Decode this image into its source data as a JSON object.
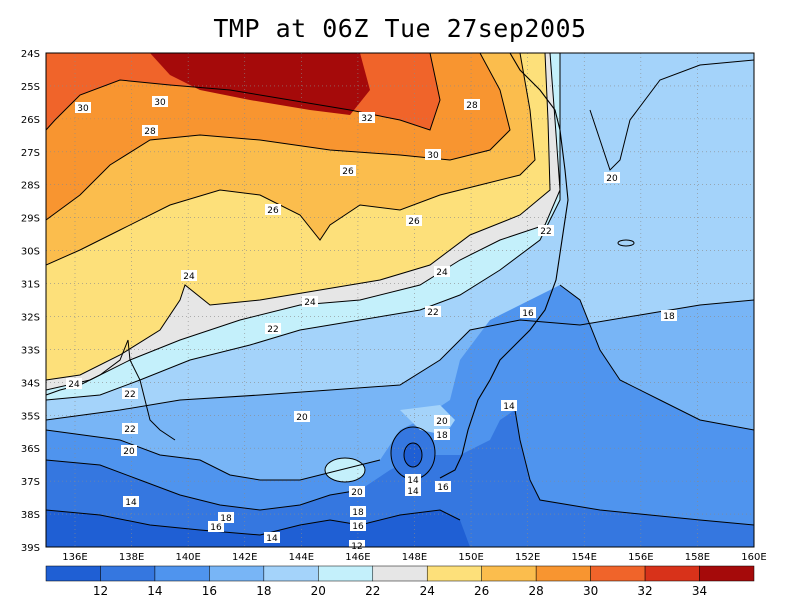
{
  "title": "TMP at 06Z Tue 27sep2005",
  "lat_labels": [
    "24S",
    "25S",
    "26S",
    "27S",
    "28S",
    "29S",
    "30S",
    "31S",
    "32S",
    "33S",
    "34S",
    "35S",
    "36S",
    "37S",
    "38S",
    "39S"
  ],
  "lon_labels": [
    "136E",
    "138E",
    "140E",
    "142E",
    "144E",
    "146E",
    "148E",
    "150E",
    "152E",
    "154E",
    "156E",
    "158E",
    "160E"
  ],
  "colorbar": {
    "colors": [
      "#1f5fd4",
      "#3577e0",
      "#4f94ee",
      "#78b5f6",
      "#a4d3fa",
      "#c4f0fb",
      "#e6e6e6",
      "#fde07a",
      "#fbbd4d",
      "#f89530",
      "#f0642a",
      "#d8321a",
      "#a50a0a"
    ],
    "ticks": [
      "12",
      "14",
      "16",
      "18",
      "20",
      "22",
      "24",
      "26",
      "28",
      "30",
      "32",
      "34"
    ]
  },
  "contour_labels": [
    "30",
    "30",
    "28",
    "28",
    "32",
    "30",
    "26",
    "26",
    "26",
    "22",
    "24",
    "24",
    "24",
    "22",
    "22",
    "20",
    "16",
    "18",
    "24",
    "22",
    "22",
    "20",
    "20",
    "20",
    "18",
    "14",
    "18",
    "14",
    "14",
    "16",
    "20",
    "18",
    "16",
    "14",
    "16",
    "18",
    "12",
    "20",
    "14"
  ]
}
